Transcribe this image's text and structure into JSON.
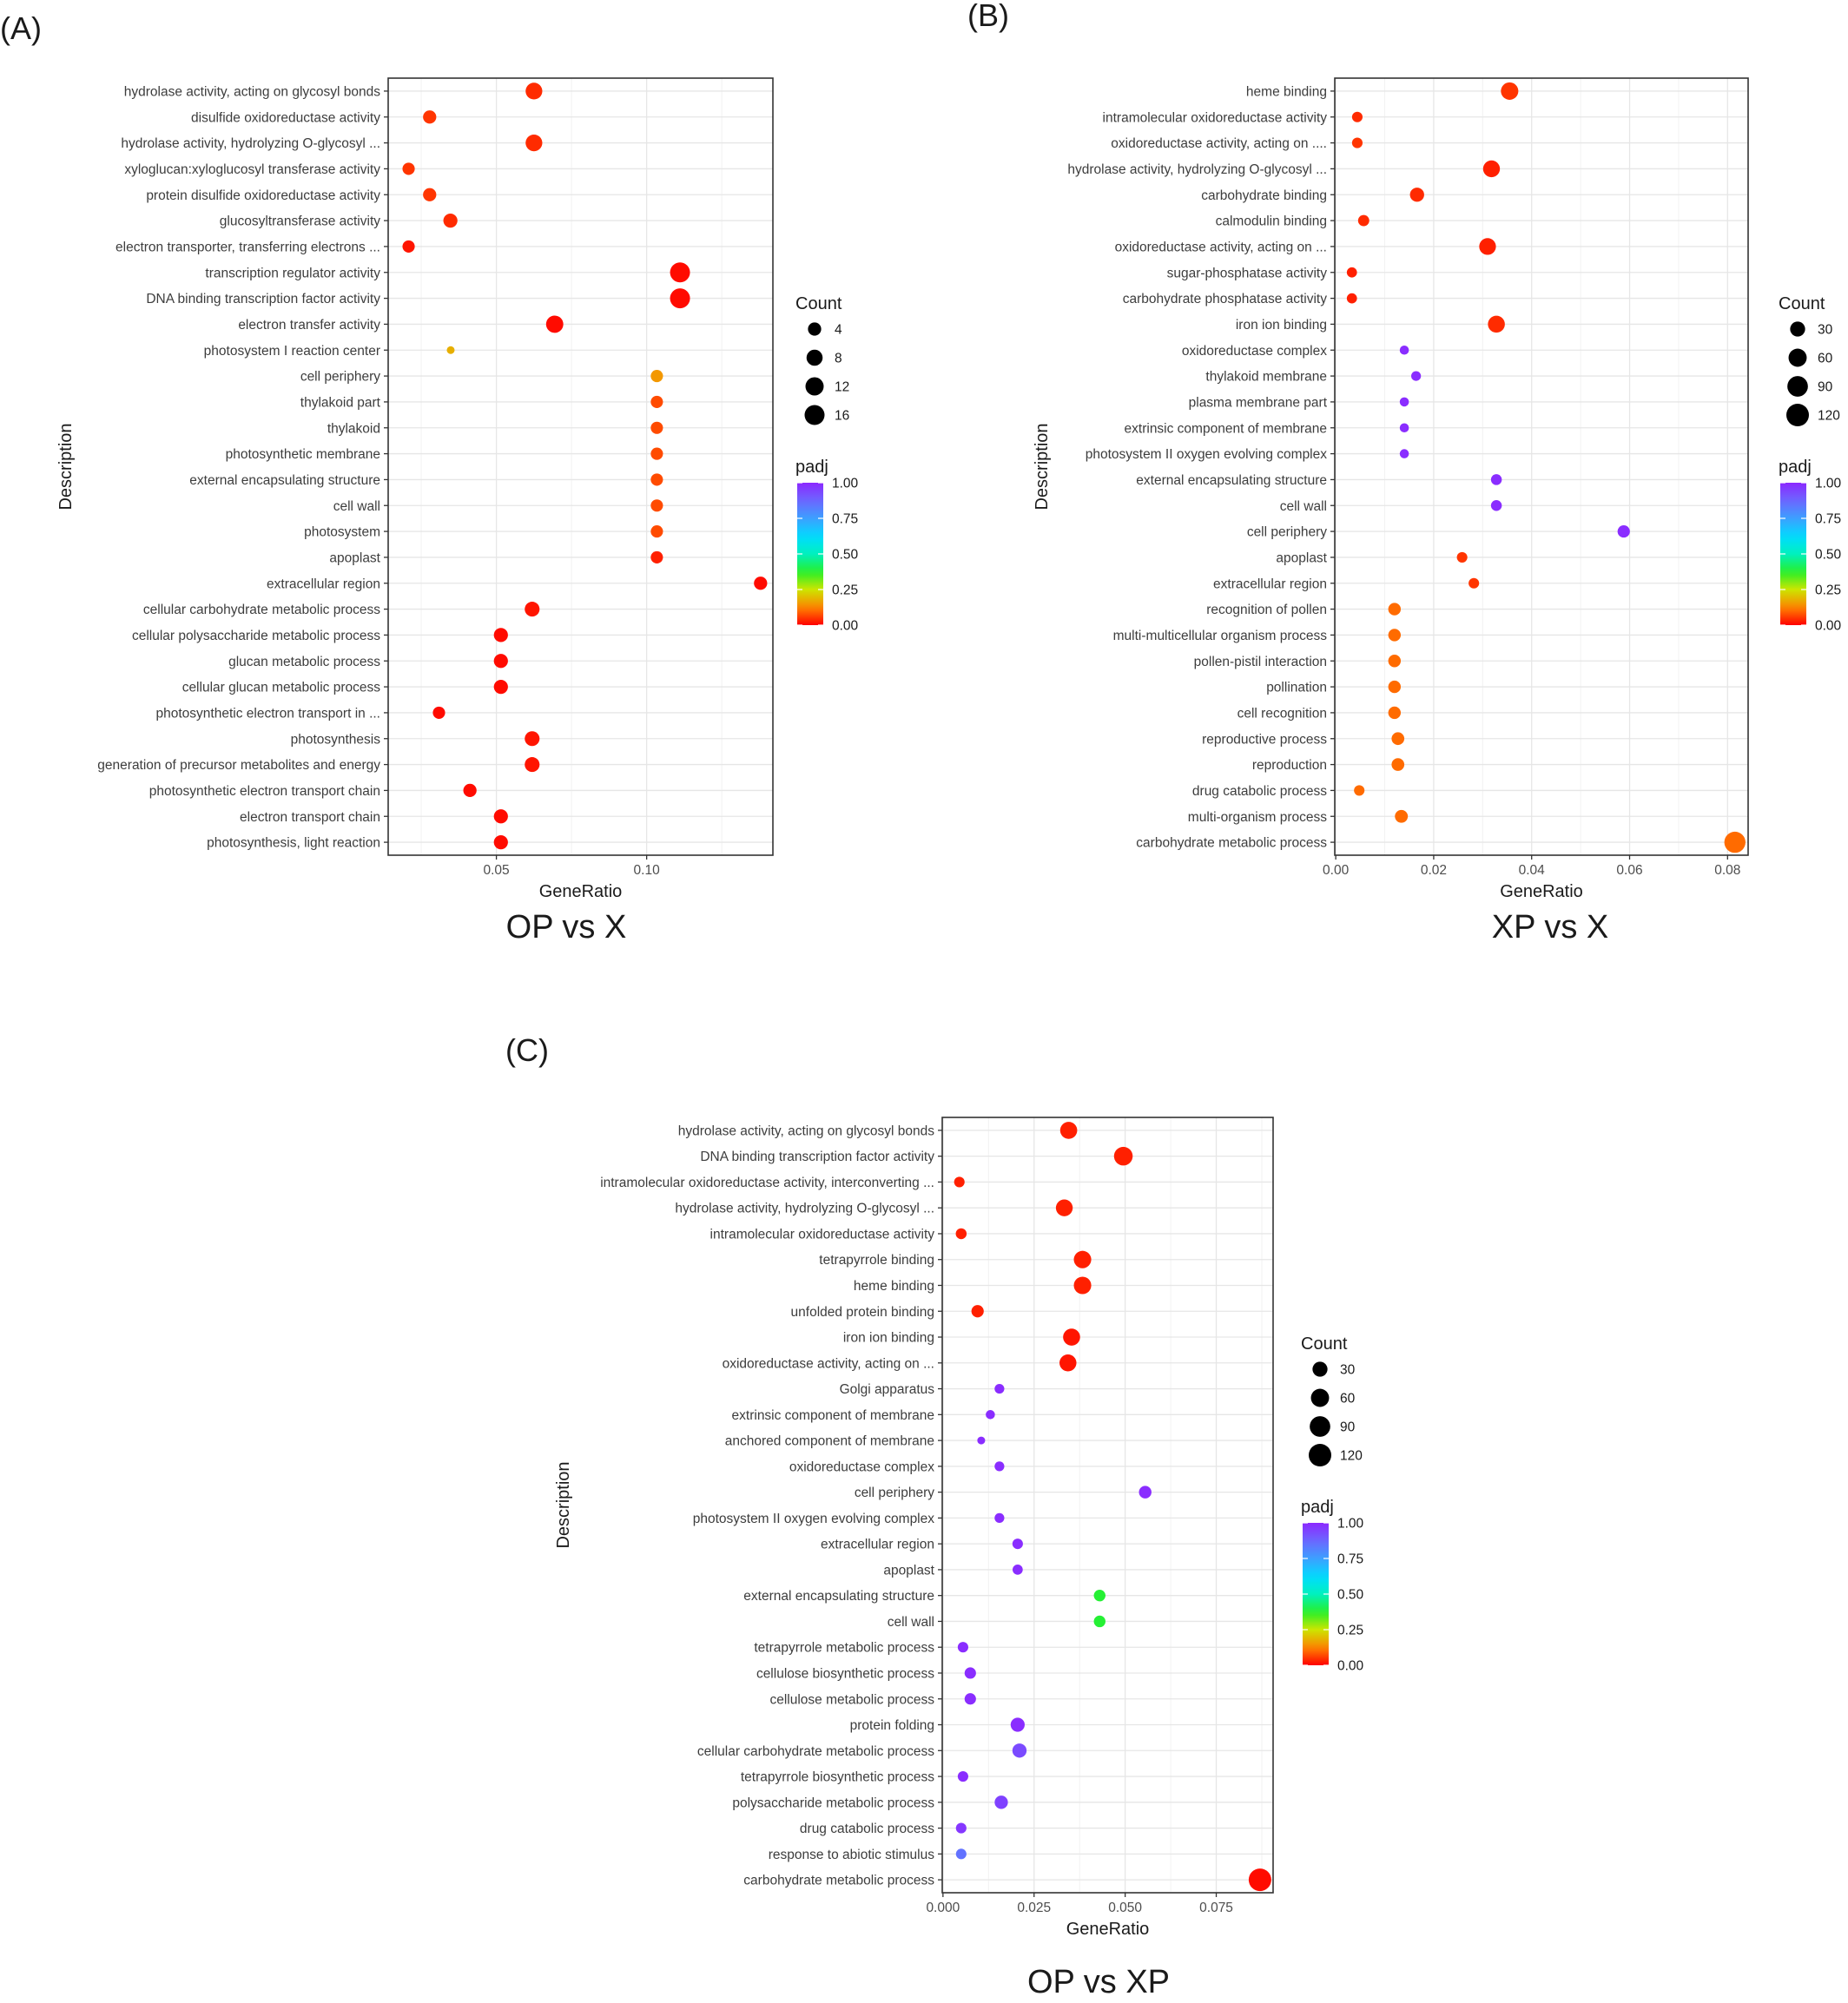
{
  "chart_data": [
    {
      "type": "scatter",
      "panel_label": "(A)",
      "title": "OP vs X",
      "xlabel": "GeneRatio",
      "ylabel": "Description",
      "xlim": [
        0.014,
        0.142
      ],
      "xticks": [
        0.05,
        0.1
      ],
      "xtick_labels": [
        "0.05",
        "0.10"
      ],
      "grid": true,
      "legend_position": "right",
      "size_legend": {
        "title": "Count",
        "values": [
          4,
          8,
          12,
          16
        ],
        "labels": [
          "4",
          "8",
          "12",
          "16"
        ]
      },
      "color_legend": {
        "title": "padj",
        "values": [
          1.0,
          0.75,
          0.5,
          0.25,
          0.0
        ],
        "labels": [
          "1.00",
          "0.75",
          "0.50",
          "0.25",
          "0.00"
        ]
      },
      "points": [
        {
          "description": "hydrolase activity, acting on glycosyl bonds",
          "gene_ratio": 0.0625,
          "count": 9,
          "padj": 0.04
        },
        {
          "description": "disulfide oxidoreductase activity",
          "gene_ratio": 0.0278,
          "count": 4,
          "padj": 0.05
        },
        {
          "description": "hydrolase activity, hydrolyzing O-glycosyl ...",
          "gene_ratio": 0.0625,
          "count": 9,
          "padj": 0.04
        },
        {
          "description": "xyloglucan:xyloglucosyl transferase activity",
          "gene_ratio": 0.0208,
          "count": 3,
          "padj": 0.05
        },
        {
          "description": "protein disulfide oxidoreductase activity",
          "gene_ratio": 0.0278,
          "count": 4,
          "padj": 0.05
        },
        {
          "description": "glucosyltransferase activity",
          "gene_ratio": 0.0347,
          "count": 5,
          "padj": 0.04
        },
        {
          "description": "electron transporter, transferring electrons ...",
          "gene_ratio": 0.0208,
          "count": 3,
          "padj": 0.02
        },
        {
          "description": "transcription regulator activity",
          "gene_ratio": 0.1111,
          "count": 16,
          "padj": 0.01
        },
        {
          "description": "DNA binding transcription factor activity",
          "gene_ratio": 0.1111,
          "count": 16,
          "padj": 0.01
        },
        {
          "description": "electron transfer activity",
          "gene_ratio": 0.0694,
          "count": 10,
          "padj": 0.01
        },
        {
          "description": "photosystem I reaction center",
          "gene_ratio": 0.0348,
          "count": 1,
          "padj": 0.18
        },
        {
          "description": "cell periphery",
          "gene_ratio": 0.1034,
          "count": 3,
          "padj": 0.15
        },
        {
          "description": "thylakoid part",
          "gene_ratio": 0.1034,
          "count": 3,
          "padj": 0.07
        },
        {
          "description": "thylakoid",
          "gene_ratio": 0.1034,
          "count": 3,
          "padj": 0.07
        },
        {
          "description": "photosynthetic membrane",
          "gene_ratio": 0.1034,
          "count": 3,
          "padj": 0.07
        },
        {
          "description": "external encapsulating structure",
          "gene_ratio": 0.1034,
          "count": 3,
          "padj": 0.07
        },
        {
          "description": "cell wall",
          "gene_ratio": 0.1034,
          "count": 3,
          "padj": 0.07
        },
        {
          "description": "photosystem",
          "gene_ratio": 0.1034,
          "count": 3,
          "padj": 0.07
        },
        {
          "description": "apoplast",
          "gene_ratio": 0.1034,
          "count": 3,
          "padj": 0.03
        },
        {
          "description": "extracellular region",
          "gene_ratio": 0.1379,
          "count": 4,
          "padj": 0.01
        },
        {
          "description": "cellular carbohydrate metabolic process",
          "gene_ratio": 0.0619,
          "count": 6,
          "padj": 0.02
        },
        {
          "description": "cellular polysaccharide metabolic process",
          "gene_ratio": 0.0515,
          "count": 5,
          "padj": 0.01
        },
        {
          "description": "glucan metabolic process",
          "gene_ratio": 0.0515,
          "count": 5,
          "padj": 0.01
        },
        {
          "description": "cellular glucan metabolic process",
          "gene_ratio": 0.0515,
          "count": 5,
          "padj": 0.01
        },
        {
          "description": "photosynthetic electron transport in ...",
          "gene_ratio": 0.0309,
          "count": 3,
          "padj": 0.01
        },
        {
          "description": "photosynthesis",
          "gene_ratio": 0.0619,
          "count": 6,
          "padj": 0.02
        },
        {
          "description": "generation of precursor metabolites and energy",
          "gene_ratio": 0.0619,
          "count": 6,
          "padj": 0.02
        },
        {
          "description": "photosynthetic electron transport chain",
          "gene_ratio": 0.0412,
          "count": 4,
          "padj": 0.01
        },
        {
          "description": "electron transport chain",
          "gene_ratio": 0.0515,
          "count": 5,
          "padj": 0.01
        },
        {
          "description": "photosynthesis, light reaction",
          "gene_ratio": 0.0515,
          "count": 5,
          "padj": 0.01
        }
      ]
    },
    {
      "type": "scatter",
      "panel_label": "(B)",
      "title": "XP vs X",
      "xlabel": "GeneRatio",
      "ylabel": "Description",
      "xlim": [
        -0.0002,
        0.0842
      ],
      "xticks": [
        0,
        0.02,
        0.04,
        0.06,
        0.08
      ],
      "xtick_labels": [
        "0.00",
        "0.02",
        "0.04",
        "0.06",
        "0.08"
      ],
      "grid": true,
      "legend_position": "right",
      "size_legend": {
        "title": "Count",
        "values": [
          30,
          60,
          90,
          120
        ],
        "labels": [
          "30",
          "60",
          "90",
          "120"
        ]
      },
      "color_legend": {
        "title": "padj",
        "values": [
          1.0,
          0.75,
          0.5,
          0.25,
          0.0
        ],
        "labels": [
          "1.00",
          "0.75",
          "0.50",
          "0.25",
          "0.00"
        ]
      },
      "points": [
        {
          "description": "heme binding",
          "gene_ratio": 0.0355,
          "count": 52,
          "padj": 0.05
        },
        {
          "description": "intramolecular oxidoreductase activity",
          "gene_ratio": 0.0044,
          "count": 6,
          "padj": 0.04
        },
        {
          "description": "oxidoreductase activity, acting on ....",
          "gene_ratio": 0.0044,
          "count": 6,
          "padj": 0.05
        },
        {
          "description": "hydrolase activity, hydrolyzing O-glycosyl ...",
          "gene_ratio": 0.0318,
          "count": 46,
          "padj": 0.03
        },
        {
          "description": "carbohydrate binding",
          "gene_ratio": 0.0166,
          "count": 24,
          "padj": 0.04
        },
        {
          "description": "calmodulin binding",
          "gene_ratio": 0.0057,
          "count": 8,
          "padj": 0.04
        },
        {
          "description": "oxidoreductase activity, acting on ...",
          "gene_ratio": 0.031,
          "count": 45,
          "padj": 0.03
        },
        {
          "description": "sugar-phosphatase activity",
          "gene_ratio": 0.0033,
          "count": 5,
          "padj": 0.03
        },
        {
          "description": "carbohydrate phosphatase activity",
          "gene_ratio": 0.0033,
          "count": 5,
          "padj": 0.03
        },
        {
          "description": "iron ion binding",
          "gene_ratio": 0.0328,
          "count": 47,
          "padj": 0.04
        },
        {
          "description": "oxidoreductase complex",
          "gene_ratio": 0.014,
          "count": 3,
          "padj": 0.99
        },
        {
          "description": "thylakoid membrane",
          "gene_ratio": 0.0164,
          "count": 4,
          "padj": 0.99
        },
        {
          "description": "plasma membrane part",
          "gene_ratio": 0.014,
          "count": 3,
          "padj": 0.99
        },
        {
          "description": "extrinsic component of membrane",
          "gene_ratio": 0.014,
          "count": 3,
          "padj": 0.99
        },
        {
          "description": "photosystem II oxygen evolving complex",
          "gene_ratio": 0.014,
          "count": 3,
          "padj": 0.99
        },
        {
          "description": "external encapsulating structure",
          "gene_ratio": 0.0328,
          "count": 7,
          "padj": 0.99
        },
        {
          "description": "cell wall",
          "gene_ratio": 0.0328,
          "count": 7,
          "padj": 0.99
        },
        {
          "description": "cell periphery",
          "gene_ratio": 0.0588,
          "count": 13,
          "padj": 0.99
        },
        {
          "description": "apoplast",
          "gene_ratio": 0.0258,
          "count": 6,
          "padj": 0.05
        },
        {
          "description": "extracellular region",
          "gene_ratio": 0.0282,
          "count": 6,
          "padj": 0.05
        },
        {
          "description": "recognition of pollen",
          "gene_ratio": 0.012,
          "count": 14,
          "padj": 0.1
        },
        {
          "description": "multi-multicellular organism process",
          "gene_ratio": 0.012,
          "count": 14,
          "padj": 0.1
        },
        {
          "description": "pollen-pistil interaction",
          "gene_ratio": 0.012,
          "count": 14,
          "padj": 0.1
        },
        {
          "description": "pollination",
          "gene_ratio": 0.012,
          "count": 14,
          "padj": 0.1
        },
        {
          "description": "cell recognition",
          "gene_ratio": 0.012,
          "count": 14,
          "padj": 0.1
        },
        {
          "description": "reproductive process",
          "gene_ratio": 0.0127,
          "count": 15,
          "padj": 0.1
        },
        {
          "description": "reproduction",
          "gene_ratio": 0.0127,
          "count": 15,
          "padj": 0.1
        },
        {
          "description": "drug catabolic process",
          "gene_ratio": 0.0048,
          "count": 6,
          "padj": 0.1
        },
        {
          "description": "multi-organism process",
          "gene_ratio": 0.0134,
          "count": 16,
          "padj": 0.1
        },
        {
          "description": "carbohydrate metabolic process",
          "gene_ratio": 0.0815,
          "count": 98,
          "padj": 0.1
        }
      ]
    },
    {
      "type": "scatter",
      "panel_label": "(C)",
      "title": "OP vs XP",
      "xlabel": "GeneRatio",
      "ylabel": "Description",
      "xlim": [
        -0.0002,
        0.0906
      ],
      "xticks": [
        0,
        0.025,
        0.05,
        0.075
      ],
      "xtick_labels": [
        "0.000",
        "0.025",
        "0.050",
        "0.075"
      ],
      "grid": true,
      "legend_position": "right",
      "size_legend": {
        "title": "Count",
        "values": [
          30,
          60,
          90,
          120
        ],
        "labels": [
          "30",
          "60",
          "90",
          "120"
        ]
      },
      "color_legend": {
        "title": "padj",
        "values": [
          1.0,
          0.75,
          0.5,
          0.25,
          0.0
        ],
        "labels": [
          "1.00",
          "0.75",
          "0.50",
          "0.25",
          "0.00"
        ]
      },
      "points": [
        {
          "description": "hydrolase activity, acting on glycosyl bonds",
          "gene_ratio": 0.0345,
          "count": 48,
          "padj": 0.03
        },
        {
          "description": "DNA binding transcription factor activity",
          "gene_ratio": 0.0495,
          "count": 66,
          "padj": 0.03
        },
        {
          "description": "intramolecular oxidoreductase activity, interconverting ...",
          "gene_ratio": 0.0045,
          "count": 6,
          "padj": 0.03
        },
        {
          "description": "hydrolase activity, hydrolyzing O-glycosyl ...",
          "gene_ratio": 0.0333,
          "count": 46,
          "padj": 0.03
        },
        {
          "description": "intramolecular oxidoreductase activity",
          "gene_ratio": 0.005,
          "count": 7,
          "padj": 0.03
        },
        {
          "description": "tetrapyrrole binding",
          "gene_ratio": 0.0383,
          "count": 52,
          "padj": 0.03
        },
        {
          "description": "heme binding",
          "gene_ratio": 0.0383,
          "count": 52,
          "padj": 0.03
        },
        {
          "description": "unfolded protein binding",
          "gene_ratio": 0.0095,
          "count": 13,
          "padj": 0.03
        },
        {
          "description": "iron ion binding",
          "gene_ratio": 0.0353,
          "count": 48,
          "padj": 0.02
        },
        {
          "description": "oxidoreductase activity, acting on ...",
          "gene_ratio": 0.0343,
          "count": 47,
          "padj": 0.02
        },
        {
          "description": "Golgi apparatus",
          "gene_ratio": 0.0155,
          "count": 4,
          "padj": 0.99
        },
        {
          "description": "extrinsic component of membrane",
          "gene_ratio": 0.013,
          "count": 3,
          "padj": 0.99
        },
        {
          "description": "anchored component of membrane",
          "gene_ratio": 0.0105,
          "count": 2,
          "padj": 0.99
        },
        {
          "description": "oxidoreductase complex",
          "gene_ratio": 0.0155,
          "count": 4,
          "padj": 0.99
        },
        {
          "description": "cell periphery",
          "gene_ratio": 0.0555,
          "count": 14,
          "padj": 0.99
        },
        {
          "description": "photosystem II oxygen evolving complex",
          "gene_ratio": 0.0155,
          "count": 4,
          "padj": 0.99
        },
        {
          "description": "extracellular region",
          "gene_ratio": 0.0205,
          "count": 6,
          "padj": 0.99
        },
        {
          "description": "apoplast",
          "gene_ratio": 0.0205,
          "count": 5,
          "padj": 0.99
        },
        {
          "description": "external encapsulating structure",
          "gene_ratio": 0.043,
          "count": 10,
          "padj": 0.38
        },
        {
          "description": "cell wall",
          "gene_ratio": 0.043,
          "count": 10,
          "padj": 0.38
        },
        {
          "description": "tetrapyrrole metabolic process",
          "gene_ratio": 0.0055,
          "count": 6,
          "padj": 0.99
        },
        {
          "description": "cellulose biosynthetic process",
          "gene_ratio": 0.0075,
          "count": 9,
          "padj": 0.99
        },
        {
          "description": "cellulose metabolic process",
          "gene_ratio": 0.0075,
          "count": 9,
          "padj": 0.99
        },
        {
          "description": "protein folding",
          "gene_ratio": 0.0205,
          "count": 23,
          "padj": 0.99
        },
        {
          "description": "cellular carbohydrate metabolic process",
          "gene_ratio": 0.021,
          "count": 24,
          "padj": 0.93
        },
        {
          "description": "tetrapyrrole biosynthetic process",
          "gene_ratio": 0.0055,
          "count": 6,
          "padj": 0.99
        },
        {
          "description": "polysaccharide metabolic process",
          "gene_ratio": 0.016,
          "count": 18,
          "padj": 0.95
        },
        {
          "description": "drug catabolic process",
          "gene_ratio": 0.005,
          "count": 6,
          "padj": 0.97
        },
        {
          "description": "response to abiotic stimulus",
          "gene_ratio": 0.005,
          "count": 6,
          "padj": 0.85
        },
        {
          "description": "carbohydrate metabolic process",
          "gene_ratio": 0.087,
          "count": 120,
          "padj": 0.01
        }
      ]
    }
  ]
}
